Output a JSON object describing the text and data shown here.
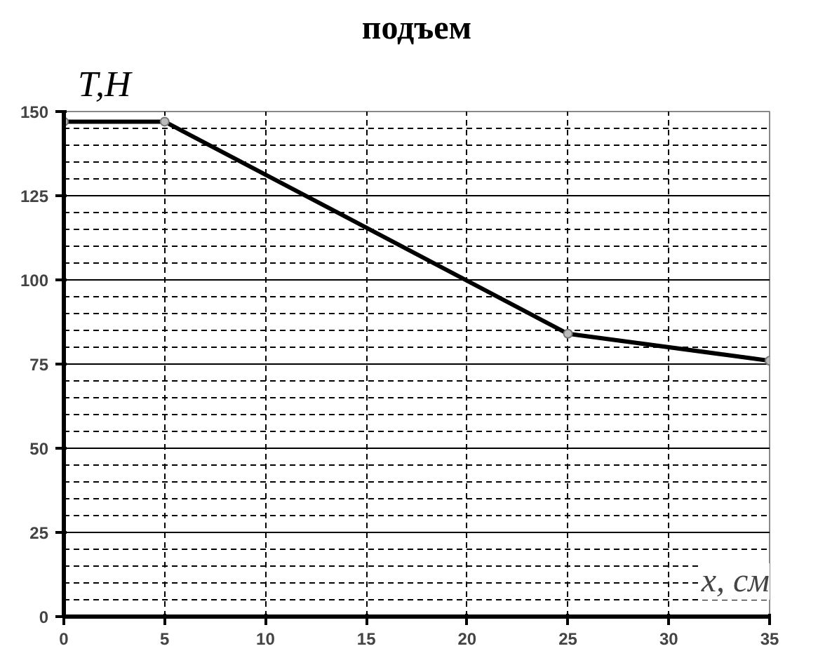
{
  "chart_data": {
    "type": "line",
    "title": "подъем",
    "xlabel": "x, см",
    "ylabel": "T,Н",
    "x": [
      0,
      5,
      25,
      35
    ],
    "series": [
      {
        "color": "#000000",
        "values": [
          147,
          147,
          84,
          76
        ]
      }
    ],
    "xlim": [
      0,
      35
    ],
    "ylim": [
      0,
      150
    ],
    "xticks": [
      0,
      5,
      10,
      15,
      20,
      25,
      30,
      35
    ],
    "yticks": [
      0,
      25,
      50,
      75,
      100,
      125,
      150
    ],
    "grid": true,
    "marker": "circle",
    "line_style": "solid"
  }
}
